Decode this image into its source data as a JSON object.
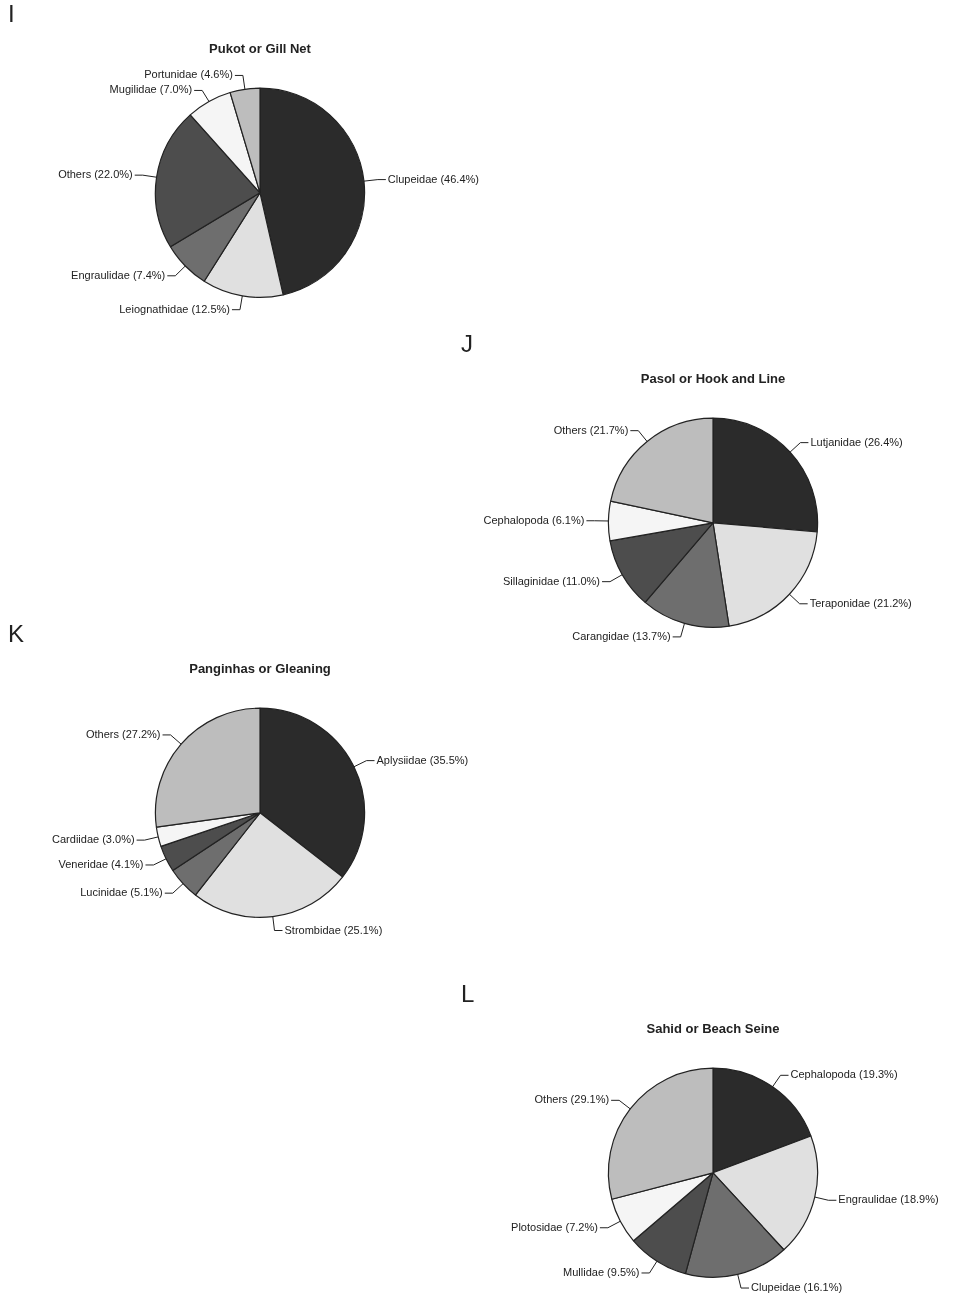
{
  "chart_data": [
    {
      "type": "pie",
      "title": "Pukot or Gill Net",
      "annotations": [
        "I"
      ],
      "categories": [
        "Clupeidae",
        "Leiognathidae",
        "Engraulidae",
        "Others",
        "Mugilidae",
        "Portunidae"
      ],
      "values": [
        46.4,
        12.5,
        7.4,
        22.0,
        7.0,
        4.6
      ],
      "value_labels": [
        "(46.4%)",
        "(12.5%)",
        "(7.4%)",
        "(22.0%)",
        "(7.0%)",
        "(4.6%)"
      ],
      "colors": [
        "#2b2b2b",
        "#e0e0e0",
        "#6e6e6e",
        "#4d4d4d",
        "#f5f5f5",
        "#bdbdbd"
      ]
    },
    {
      "type": "pie",
      "title": "Pasol or Hook and Line",
      "annotations": [
        "J"
      ],
      "categories": [
        "Lutjanidae",
        "Teraponidae",
        "Carangidae",
        "Sillaginidae",
        "Cephalopoda",
        "Others"
      ],
      "values": [
        26.4,
        21.2,
        13.7,
        11.0,
        6.1,
        21.7
      ],
      "value_labels": [
        "(26.4%)",
        "(21.2%)",
        "(13.7%)",
        "(11.0%)",
        "(6.1%)",
        "(21.7%)"
      ],
      "colors": [
        "#2b2b2b",
        "#e0e0e0",
        "#6e6e6e",
        "#4d4d4d",
        "#f5f5f5",
        "#bdbdbd"
      ]
    },
    {
      "type": "pie",
      "title": "Panginhas or Gleaning",
      "annotations": [
        "K"
      ],
      "categories": [
        "Aplysiidae",
        "Strombidae",
        "Lucinidae",
        "Veneridae",
        "Cardiidae",
        "Others"
      ],
      "values": [
        35.5,
        25.1,
        5.1,
        4.1,
        3.0,
        27.2
      ],
      "value_labels": [
        "(35.5%)",
        "(25.1%)",
        "(5.1%)",
        "(4.1%)",
        "(3.0%)",
        "(27.2%)"
      ],
      "colors": [
        "#2b2b2b",
        "#e0e0e0",
        "#6e6e6e",
        "#4d4d4d",
        "#f5f5f5",
        "#bdbdbd"
      ]
    },
    {
      "type": "pie",
      "title": "Sahid or Beach Seine",
      "annotations": [
        "L"
      ],
      "categories": [
        "Cephalopoda",
        "Engraulidae",
        "Clupeidae",
        "Mullidae",
        "Plotosidae",
        "Others"
      ],
      "values": [
        19.3,
        18.9,
        16.1,
        9.5,
        7.2,
        29.1
      ],
      "value_labels": [
        "(19.3%)",
        "(18.9%)",
        "(16.1%)",
        "(9.5%)",
        "(7.2%)",
        "(29.1%)"
      ],
      "colors": [
        "#2b2b2b",
        "#e0e0e0",
        "#6e6e6e",
        "#4d4d4d",
        "#f5f5f5",
        "#bdbdbd"
      ]
    }
  ]
}
